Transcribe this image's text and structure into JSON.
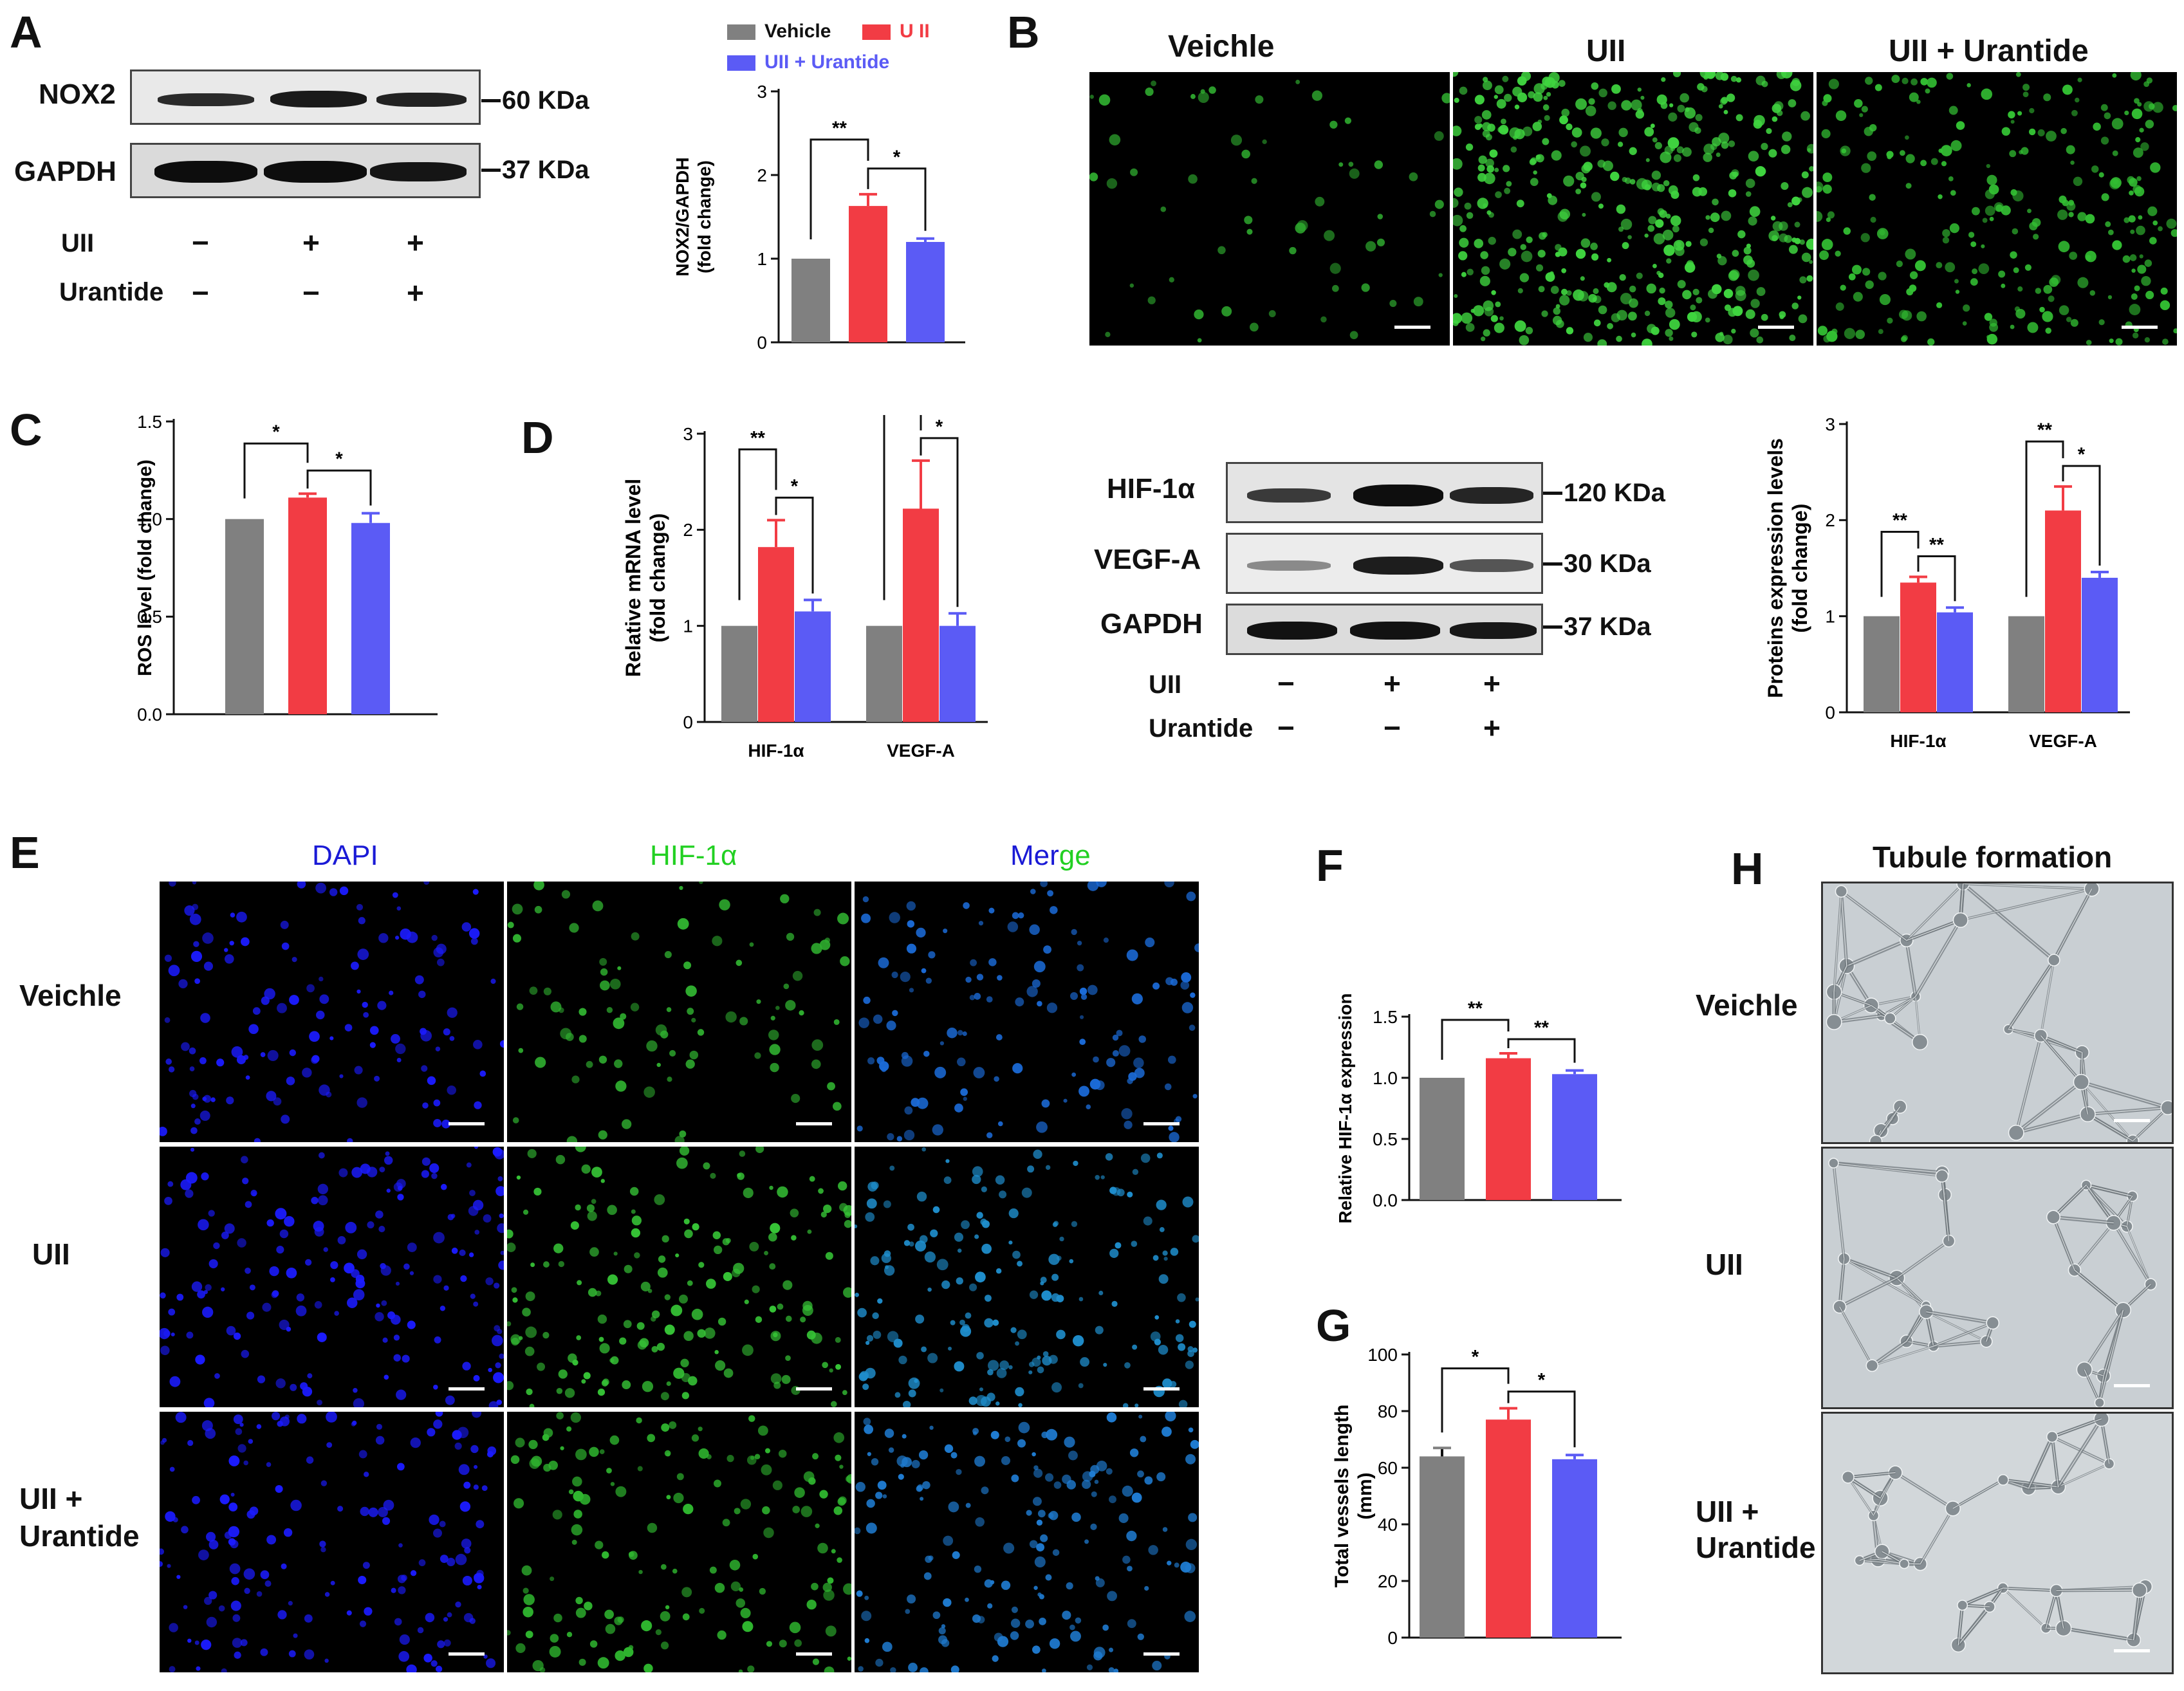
{
  "panels": {
    "A": {
      "label": "A",
      "blot_rows": [
        "NOX2",
        "GAPDH"
      ],
      "sizes": [
        "60 KDa",
        "37 KDa"
      ],
      "conditions": [
        {
          "name": "UII",
          "signs": [
            "−",
            "+",
            "+"
          ]
        },
        {
          "name": "Urantide",
          "signs": [
            "−",
            "−",
            "+"
          ]
        }
      ]
    },
    "B": {
      "label": "B",
      "titles": [
        "Veichle",
        "UII",
        "UII + Urantide"
      ]
    },
    "C": {
      "label": "C"
    },
    "D": {
      "label": "D",
      "blot_rows": [
        "HIF-1α",
        "VEGF-A",
        "GAPDH"
      ],
      "sizes": [
        "120 KDa",
        "30 KDa",
        "37 KDa"
      ],
      "conditions": [
        {
          "name": "UII",
          "signs": [
            "−",
            "+",
            "+"
          ]
        },
        {
          "name": "Urantide",
          "signs": [
            "−",
            "−",
            "+"
          ]
        }
      ]
    },
    "E": {
      "label": "E",
      "columns": [
        "DAPI",
        "HIF-1α",
        "Mer",
        "ge"
      ],
      "rows": [
        "Veichle",
        "UII",
        "UII +",
        "Urantide"
      ]
    },
    "F": {
      "label": "F"
    },
    "G": {
      "label": "G"
    },
    "H": {
      "label": "H",
      "title": "Tubule formation",
      "rows": [
        "Veichle",
        "UII",
        "UII +",
        "Urantide"
      ]
    }
  },
  "colors": {
    "vehicle": "#808080",
    "uii": "#f23c44",
    "urantide": "#5b5bf5"
  },
  "chart_data": [
    {
      "id": "nox2",
      "type": "bar",
      "title": "",
      "ylabel": [
        "NOX2/GAPDH",
        "(fold change)"
      ],
      "ylim": [
        0,
        3
      ],
      "yticks": [
        "0",
        "1",
        "2",
        "3"
      ],
      "legend": [
        "Vehicle",
        "U II",
        "UII + Urantide"
      ],
      "series": [
        {
          "name": "Vehicle",
          "values": [
            1.0
          ],
          "errors": [
            0
          ]
        },
        {
          "name": "U II",
          "values": [
            1.63
          ],
          "errors": [
            0.14
          ]
        },
        {
          "name": "UII + Urantide",
          "values": [
            1.2
          ],
          "errors": [
            0.04
          ]
        }
      ],
      "significance": [
        [
          "**",
          0,
          1
        ],
        [
          "*",
          1,
          2
        ]
      ]
    },
    {
      "id": "ros",
      "type": "bar",
      "title": "",
      "ylabel": [
        "ROS level (fold change)"
      ],
      "ylim": [
        0,
        1.5
      ],
      "yticks": [
        "0.0",
        "0.5",
        "1.0",
        "1.5"
      ],
      "series": [
        {
          "name": "Vehicle",
          "values": [
            1.0
          ],
          "errors": [
            0
          ]
        },
        {
          "name": "UII",
          "values": [
            1.11
          ],
          "errors": [
            0.02
          ]
        },
        {
          "name": "UII + Urantide",
          "values": [
            0.98
          ],
          "errors": [
            0.05
          ]
        }
      ],
      "significance": [
        [
          "*",
          0,
          1
        ],
        [
          "*",
          1,
          2
        ]
      ]
    },
    {
      "id": "mrna",
      "type": "bar",
      "title": "",
      "ylabel": [
        "Relative mRNA level",
        "(fold change)"
      ],
      "ylim": [
        0,
        3
      ],
      "yticks": [
        "0",
        "1",
        "2",
        "3"
      ],
      "categories": [
        "HIF-1α",
        "VEGF-A"
      ],
      "series": [
        {
          "name": "Vehicle",
          "values": [
            1.0,
            1.0
          ],
          "errors": [
            0,
            0
          ]
        },
        {
          "name": "UII",
          "values": [
            1.82,
            2.22
          ],
          "errors": [
            0.28,
            0.5
          ]
        },
        {
          "name": "UII + Urantide",
          "values": [
            1.15,
            1.0
          ],
          "errors": [
            0.12,
            0.13
          ]
        }
      ],
      "significance": [
        [
          "**",
          "*"
        ],
        [
          "*",
          "*"
        ]
      ]
    },
    {
      "id": "protein",
      "type": "bar",
      "title": "",
      "ylabel": [
        "Proteins expression levels",
        "(fold change)"
      ],
      "ylim": [
        0,
        3
      ],
      "yticks": [
        "0",
        "1",
        "2",
        "3"
      ],
      "categories": [
        "HIF-1α",
        "VEGF-A"
      ],
      "series": [
        {
          "name": "Vehicle",
          "values": [
            1.0,
            1.0
          ],
          "errors": [
            0,
            0
          ]
        },
        {
          "name": "UII",
          "values": [
            1.35,
            2.1
          ],
          "errors": [
            0.06,
            0.25
          ]
        },
        {
          "name": "UII + Urantide",
          "values": [
            1.04,
            1.4
          ],
          "errors": [
            0.05,
            0.06
          ]
        }
      ],
      "significance": [
        [
          "**",
          "**"
        ],
        [
          "**",
          "*"
        ]
      ]
    },
    {
      "id": "hif",
      "type": "bar",
      "title": "",
      "ylabel": [
        "Relative HIF-1α expression"
      ],
      "ylim": [
        0,
        1.5
      ],
      "yticks": [
        "0.0",
        "0.5",
        "1.0",
        "1.5"
      ],
      "series": [
        {
          "name": "Vehicle",
          "values": [
            1.0
          ],
          "errors": [
            0
          ]
        },
        {
          "name": "UII",
          "values": [
            1.16
          ],
          "errors": [
            0.04
          ]
        },
        {
          "name": "UII + Urantide",
          "values": [
            1.03
          ],
          "errors": [
            0.03
          ]
        }
      ],
      "significance": [
        [
          "**",
          0,
          1
        ],
        [
          "**",
          1,
          2
        ]
      ]
    },
    {
      "id": "vessels",
      "type": "bar",
      "title": "",
      "ylabel": [
        "Total vessels length",
        "(mm)"
      ],
      "ylim": [
        0,
        100
      ],
      "yticks": [
        "0",
        "20",
        "40",
        "60",
        "80",
        "100"
      ],
      "series": [
        {
          "name": "Vehicle",
          "values": [
            64
          ],
          "errors": [
            3
          ]
        },
        {
          "name": "UII",
          "values": [
            77
          ],
          "errors": [
            4
          ]
        },
        {
          "name": "UII + Urantide",
          "values": [
            63
          ],
          "errors": [
            1.5
          ]
        }
      ],
      "significance": [
        [
          "*",
          0,
          1
        ],
        [
          "*",
          1,
          2
        ]
      ]
    }
  ]
}
